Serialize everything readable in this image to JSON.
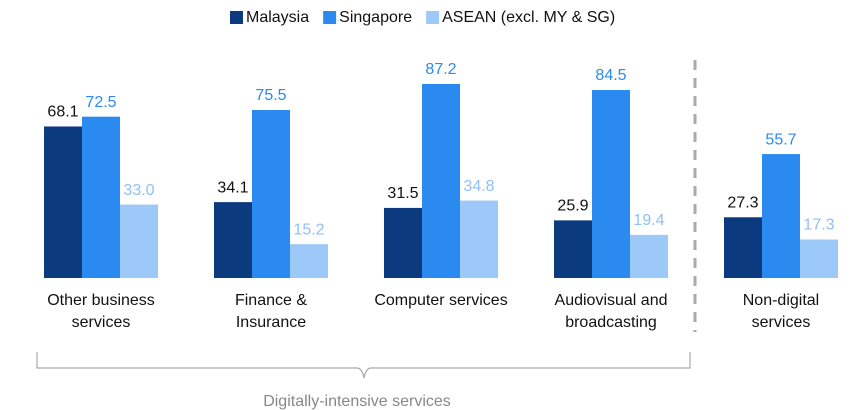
{
  "chart_data": {
    "type": "bar",
    "categories": [
      "Other business services",
      "Finance & Insurance",
      "Computer services",
      "Audiovisual and broadcasting",
      "Non-digital services"
    ],
    "series": [
      {
        "name": "Malaysia",
        "color": "#0b3a7e",
        "label_color": "#111111",
        "values": [
          68.1,
          34.1,
          31.5,
          25.9,
          27.3
        ],
        "value_labels": [
          "68.1",
          "34.1",
          "31.5",
          "25.9",
          "27.3"
        ]
      },
      {
        "name": "Singapore",
        "color": "#2b8af0",
        "label_color": "#2b8af0",
        "values": [
          72.5,
          75.5,
          87.2,
          84.5,
          55.7
        ],
        "value_labels": [
          "72.5",
          "75.5",
          "87.2",
          "84.5",
          "55.7"
        ]
      },
      {
        "name": "ASEAN (excl. MY & SG)",
        "color": "#9dc9f8",
        "label_color": "#8fc0f5",
        "values": [
          33.0,
          15.2,
          34.8,
          19.4,
          17.3
        ],
        "value_labels": [
          "33.0",
          "15.2",
          "34.8",
          "19.4",
          "17.3"
        ]
      }
    ],
    "group_label": "Digitally-intensive services"
  }
}
